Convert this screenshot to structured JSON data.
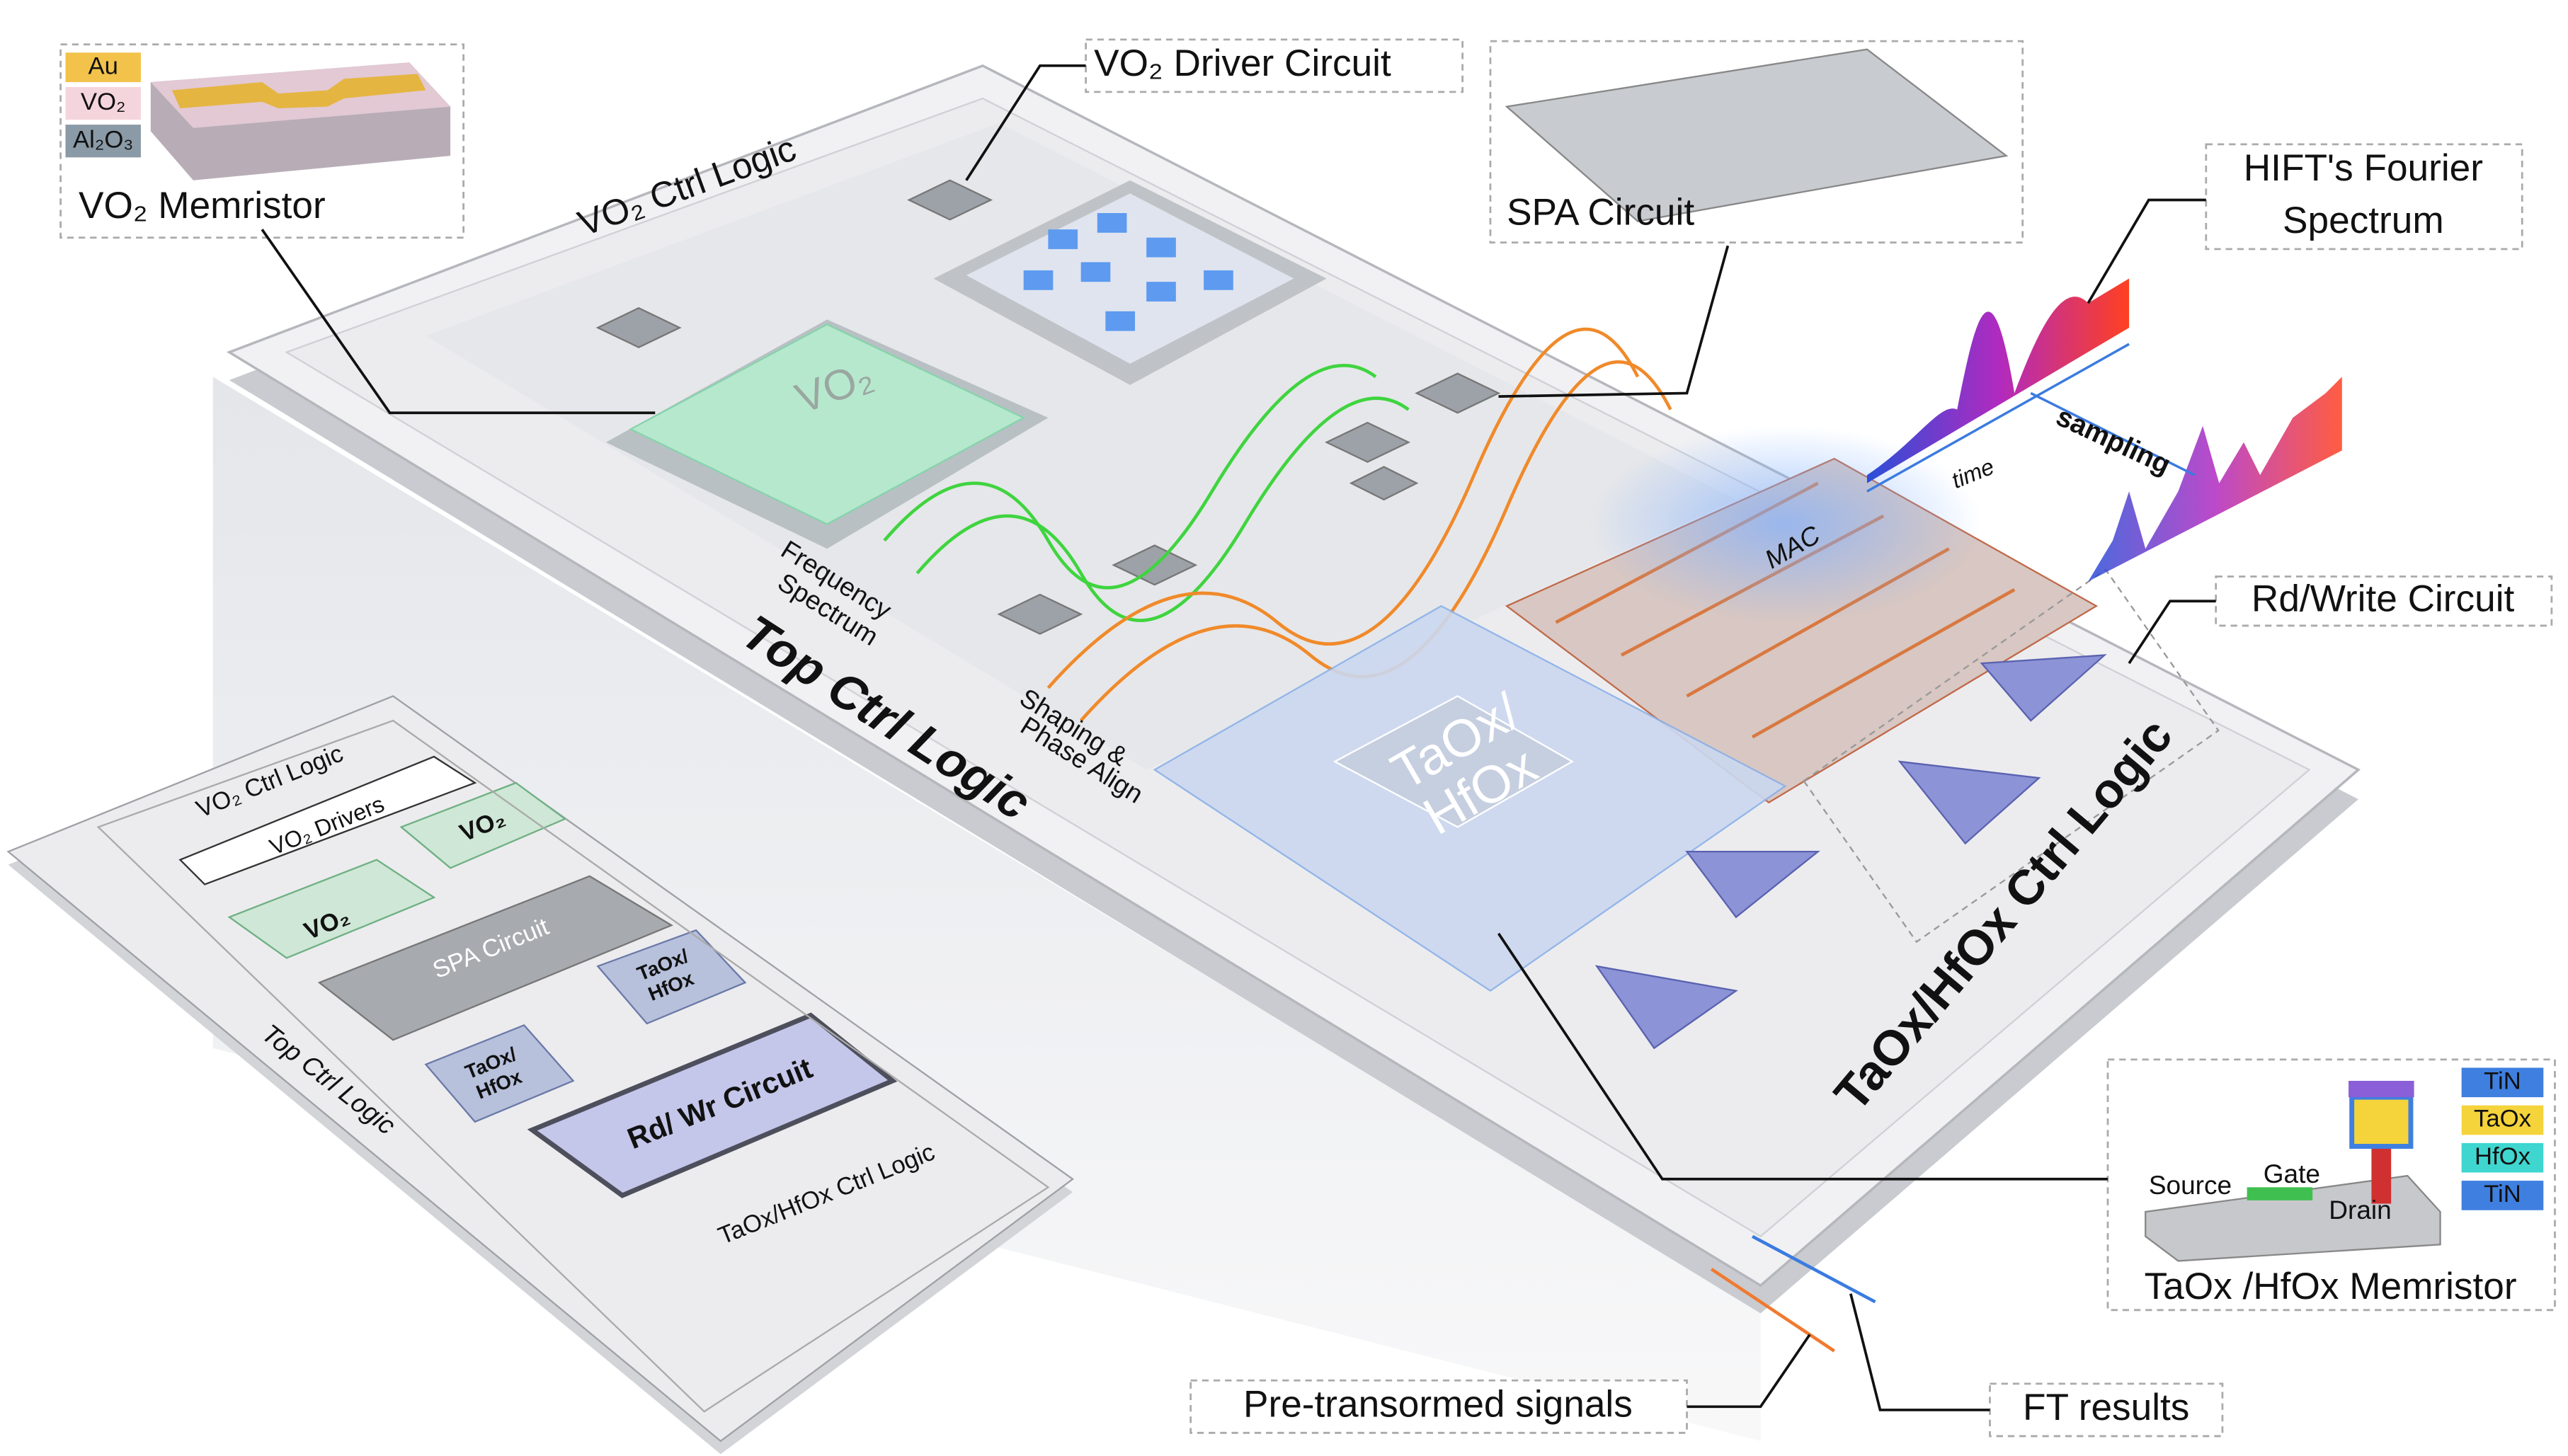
{
  "callouts": {
    "vo2_memristor": {
      "legend": [
        "Au",
        "VO₂",
        "Al₂O₃"
      ],
      "label": "VO₂ Memristor"
    },
    "vo2_driver": "VO₂ Driver Circuit",
    "spa": "SPA Circuit",
    "hift": [
      "HIFT's Fourier",
      "Spectrum"
    ],
    "rd_write": "Rd/Write Circuit",
    "taox_memristor": {
      "legend": [
        "TiN",
        "TaOx",
        "HfOx",
        "TiN"
      ],
      "terminals": [
        "Source",
        "Gate",
        "Drain"
      ],
      "label": "TaOx /HfOx Memristor"
    },
    "pre_transformed": "Pre-transormed signals",
    "ft_results": "FT results"
  },
  "chip": {
    "vo2_ctrl": "VO₂  Ctrl  Logic",
    "vo2_array": "VO₂",
    "frequency": [
      "Frequency",
      "Spectrum"
    ],
    "shaping": [
      "Shaping &",
      "Phase Align"
    ],
    "top_ctrl": "Top Ctrl Logic",
    "mac": "MAC",
    "taox_array": [
      "TaOx/",
      "HfOx"
    ],
    "taox_ctrl": "TaOx/HfOx  Ctrl  Logic",
    "time": "time",
    "sampling": "sampling"
  },
  "inset": {
    "vo2_ctrl": "VO₂ Ctrl  Logic",
    "vo2_drivers": "VO₂ Drivers",
    "vo2_blocks": [
      "VO₂",
      "VO₂"
    ],
    "spa": "SPA Circuit",
    "taox_blocks": [
      [
        "TaOx/",
        "HfOx"
      ],
      [
        "TaOx/",
        "HfOx"
      ]
    ],
    "rd_wr": "Rd/ Wr Circuit",
    "top_ctrl": "Top Ctrl Logic",
    "taox_ctrl": "TaOx/HfOx Ctrl Logic"
  }
}
